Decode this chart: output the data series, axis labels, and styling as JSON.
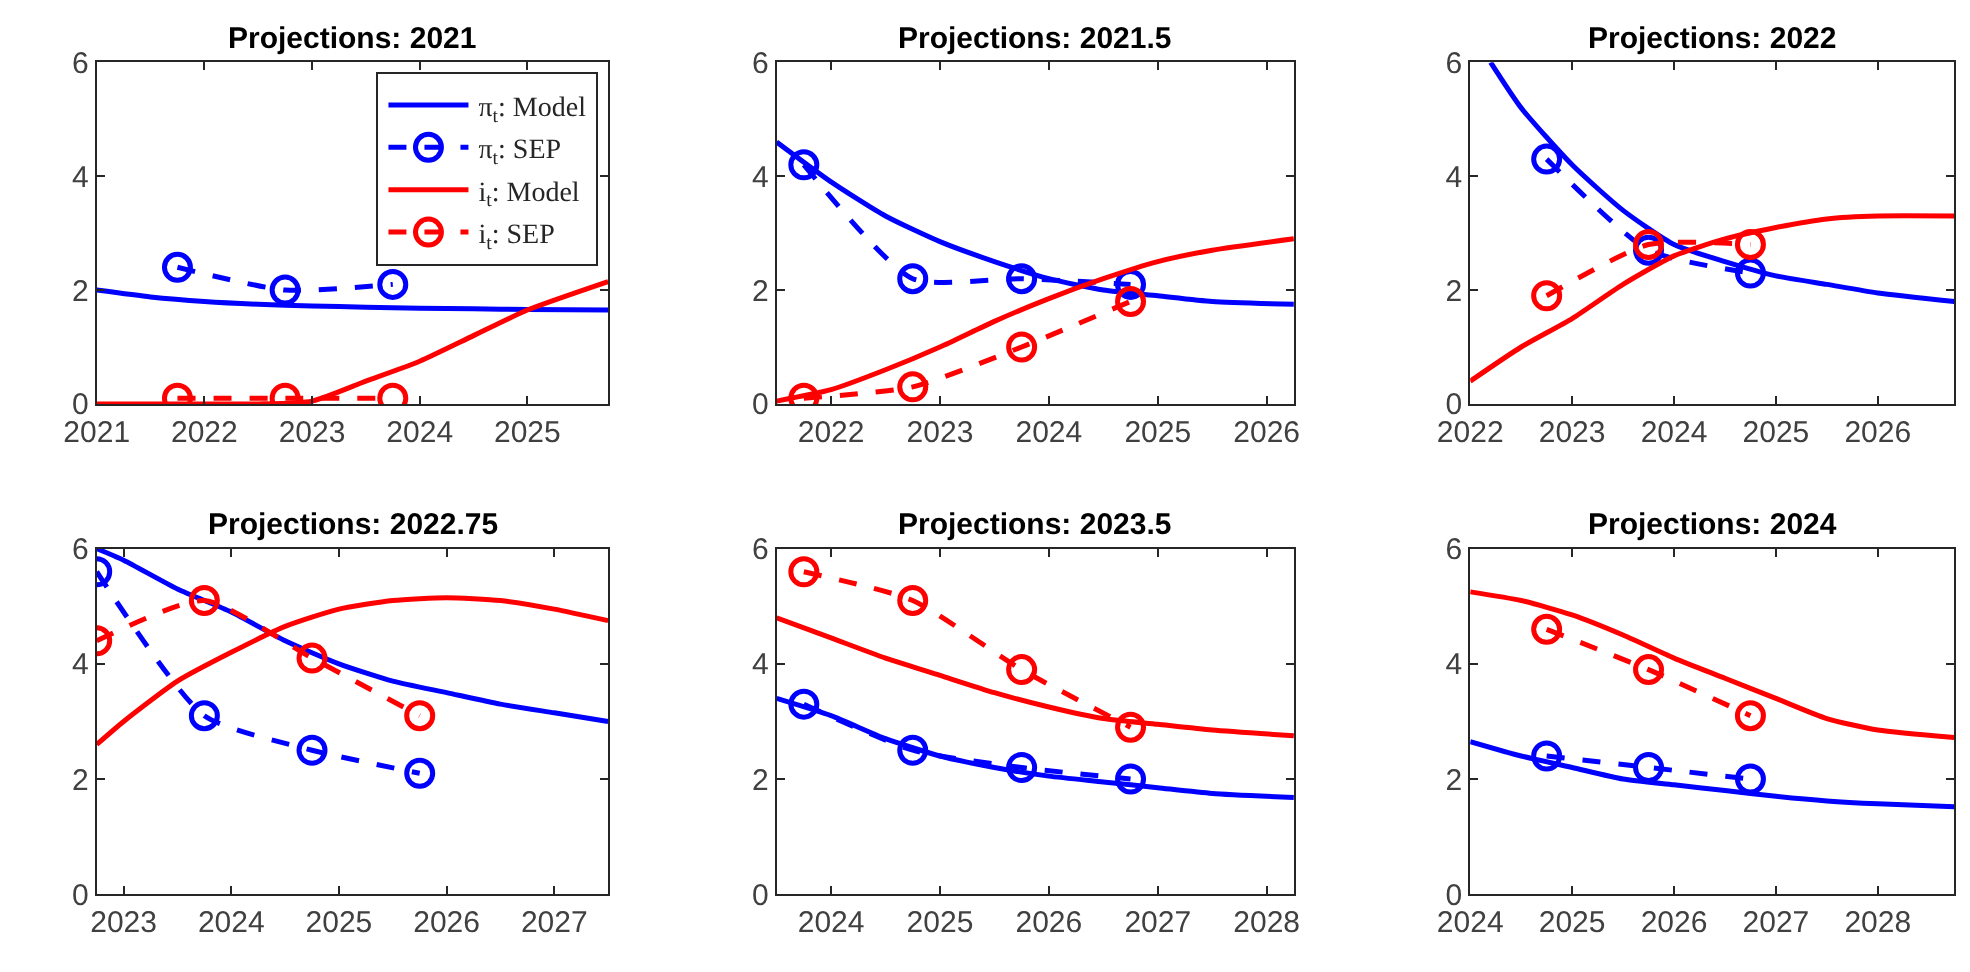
{
  "chart_data": [
    {
      "type": "line",
      "title": "Projections: 2021",
      "xlim": [
        2021,
        2025.75
      ],
      "xticks": [
        2021,
        2022,
        2023,
        2024,
        2025
      ],
      "ylim": [
        0,
        6
      ],
      "yticks": [
        0,
        2,
        4,
        6
      ],
      "legend": "top right",
      "series": [
        {
          "name": "π$_{t}$: Model",
          "color": "#0000ff",
          "line_style": "solid",
          "marker": "none",
          "x": [
            2021,
            2021.5,
            2022,
            2022.5,
            2023,
            2023.5,
            2024,
            2024.5,
            2025,
            2025.75
          ],
          "values": [
            2.0,
            1.88,
            1.8,
            1.75,
            1.72,
            1.7,
            1.68,
            1.67,
            1.66,
            1.65
          ]
        },
        {
          "name": "π$_{t}$: SEP",
          "color": "#0000ff",
          "line_style": "dashed",
          "marker": "circle",
          "x": [
            2021.75,
            2022.75,
            2023.75
          ],
          "values": [
            2.4,
            2.0,
            2.1
          ]
        },
        {
          "name": "i$_{t}$: Model",
          "color": "#ff0000",
          "line_style": "solid",
          "marker": "none",
          "x": [
            2021,
            2021.5,
            2022,
            2022.5,
            2023,
            2023.5,
            2024,
            2024.5,
            2025,
            2025.75
          ],
          "values": [
            0,
            0,
            0,
            0,
            0.05,
            0.4,
            0.75,
            1.2,
            1.65,
            2.15
          ]
        },
        {
          "name": "i$_{t}$: SEP",
          "color": "#ff0000",
          "line_style": "dashed",
          "marker": "circle",
          "x": [
            2021.75,
            2022.75,
            2023.75
          ],
          "values": [
            0.1,
            0.1,
            0.1
          ]
        }
      ]
    },
    {
      "type": "line",
      "title": "Projections: 2021.5",
      "xlim": [
        2021.5,
        2026.25
      ],
      "xticks": [
        2022,
        2023,
        2024,
        2025,
        2026
      ],
      "ylim": [
        0,
        6
      ],
      "yticks": [
        0,
        2,
        4,
        6
      ],
      "legend": false,
      "series": [
        {
          "color": "#0000ff",
          "line_style": "solid",
          "marker": "none",
          "x": [
            2021.5,
            2022,
            2022.5,
            2023,
            2023.5,
            2024,
            2024.5,
            2025,
            2025.5,
            2026.25
          ],
          "values": [
            4.6,
            3.9,
            3.3,
            2.85,
            2.5,
            2.2,
            2.0,
            1.9,
            1.8,
            1.75
          ]
        },
        {
          "color": "#0000ff",
          "line_style": "dashed",
          "marker": "circle",
          "x": [
            2021.75,
            2022.75,
            2023.75,
            2024.75
          ],
          "values": [
            4.2,
            2.2,
            2.2,
            2.1
          ]
        },
        {
          "color": "#ff0000",
          "line_style": "solid",
          "marker": "none",
          "x": [
            2021.5,
            2022,
            2022.5,
            2023,
            2023.5,
            2024,
            2024.5,
            2025,
            2025.5,
            2026.25
          ],
          "values": [
            0.05,
            0.25,
            0.6,
            1.0,
            1.45,
            1.85,
            2.2,
            2.5,
            2.7,
            2.9
          ]
        },
        {
          "color": "#ff0000",
          "line_style": "dashed",
          "marker": "circle",
          "x": [
            2021.75,
            2022.75,
            2023.75,
            2024.75
          ],
          "values": [
            0.1,
            0.3,
            1.0,
            1.8
          ]
        }
      ]
    },
    {
      "type": "line",
      "title": "Projections: 2022",
      "xlim": [
        2022,
        2026.75
      ],
      "xticks": [
        2022,
        2023,
        2024,
        2025,
        2026
      ],
      "ylim": [
        0,
        6
      ],
      "yticks": [
        0,
        2,
        4,
        6
      ],
      "legend": false,
      "series": [
        {
          "color": "#0000ff",
          "line_style": "solid",
          "marker": "none",
          "x": [
            2022.2,
            2022.5,
            2023,
            2023.5,
            2024,
            2024.5,
            2025,
            2025.5,
            2026,
            2026.75
          ],
          "values": [
            6.0,
            5.2,
            4.2,
            3.4,
            2.8,
            2.5,
            2.25,
            2.1,
            1.95,
            1.8
          ]
        },
        {
          "color": "#0000ff",
          "line_style": "dashed",
          "marker": "circle",
          "x": [
            2022.75,
            2023.75,
            2024.75
          ],
          "values": [
            4.3,
            2.7,
            2.3
          ]
        },
        {
          "color": "#ff0000",
          "line_style": "solid",
          "marker": "none",
          "x": [
            2022,
            2022.5,
            2023,
            2023.5,
            2024,
            2024.5,
            2025,
            2025.5,
            2026,
            2026.75
          ],
          "values": [
            0.4,
            1.0,
            1.5,
            2.1,
            2.6,
            2.9,
            3.1,
            3.25,
            3.3,
            3.3
          ]
        },
        {
          "color": "#ff0000",
          "line_style": "dashed",
          "marker": "circle",
          "x": [
            2022.75,
            2023.75,
            2024.75
          ],
          "values": [
            1.9,
            2.8,
            2.8
          ]
        }
      ]
    },
    {
      "type": "line",
      "title": "Projections: 2022.75",
      "xlim": [
        2022.75,
        2027.5
      ],
      "xticks": [
        2023,
        2024,
        2025,
        2026,
        2027
      ],
      "ylim": [
        0,
        6
      ],
      "yticks": [
        0,
        2,
        4,
        6
      ],
      "legend": false,
      "series": [
        {
          "color": "#0000ff",
          "line_style": "solid",
          "marker": "none",
          "x": [
            2022.75,
            2023,
            2023.5,
            2024,
            2024.5,
            2025,
            2025.5,
            2026,
            2026.5,
            2027,
            2027.5
          ],
          "values": [
            6.0,
            5.8,
            5.3,
            4.9,
            4.4,
            4.0,
            3.7,
            3.5,
            3.3,
            3.15,
            3.0
          ]
        },
        {
          "color": "#0000ff",
          "line_style": "dashed",
          "marker": "circle",
          "x": [
            2022.75,
            2023.75,
            2024.75,
            2025.75
          ],
          "values": [
            5.6,
            3.1,
            2.5,
            2.1
          ]
        },
        {
          "color": "#ff0000",
          "line_style": "solid",
          "marker": "none",
          "x": [
            2022.75,
            2023,
            2023.5,
            2024,
            2024.5,
            2025,
            2025.5,
            2026,
            2026.5,
            2027,
            2027.5
          ],
          "values": [
            2.6,
            3.0,
            3.7,
            4.2,
            4.65,
            4.95,
            5.1,
            5.15,
            5.1,
            4.95,
            4.75
          ]
        },
        {
          "color": "#ff0000",
          "line_style": "dashed",
          "marker": "circle",
          "x": [
            2022.75,
            2023.75,
            2024.75,
            2025.75
          ],
          "values": [
            4.4,
            5.1,
            4.1,
            3.1
          ]
        }
      ]
    },
    {
      "type": "line",
      "title": "Projections: 2023.5",
      "xlim": [
        2023.5,
        2028.25
      ],
      "xticks": [
        2024,
        2025,
        2026,
        2027,
        2028
      ],
      "ylim": [
        0,
        6
      ],
      "yticks": [
        0,
        2,
        4,
        6
      ],
      "legend": false,
      "series": [
        {
          "color": "#0000ff",
          "line_style": "solid",
          "marker": "none",
          "x": [
            2023.5,
            2024,
            2024.5,
            2025,
            2025.5,
            2026,
            2026.5,
            2027,
            2027.5,
            2028.25
          ],
          "values": [
            3.4,
            3.1,
            2.7,
            2.4,
            2.2,
            2.05,
            1.95,
            1.85,
            1.75,
            1.68
          ]
        },
        {
          "color": "#0000ff",
          "line_style": "dashed",
          "marker": "circle",
          "x": [
            2023.75,
            2024.75,
            2025.75,
            2026.75
          ],
          "values": [
            3.3,
            2.5,
            2.2,
            2.0
          ]
        },
        {
          "color": "#ff0000",
          "line_style": "solid",
          "marker": "none",
          "x": [
            2023.5,
            2024,
            2024.5,
            2025,
            2025.5,
            2026,
            2026.5,
            2027,
            2027.5,
            2028.25
          ],
          "values": [
            4.8,
            4.45,
            4.1,
            3.8,
            3.5,
            3.25,
            3.05,
            2.95,
            2.85,
            2.75
          ]
        },
        {
          "color": "#ff0000",
          "line_style": "dashed",
          "marker": "circle",
          "x": [
            2023.75,
            2024.75,
            2025.75,
            2026.75
          ],
          "values": [
            5.6,
            5.1,
            3.9,
            2.9
          ]
        }
      ]
    },
    {
      "type": "line",
      "title": "Projections: 2024",
      "xlim": [
        2024,
        2028.75
      ],
      "xticks": [
        2024,
        2025,
        2026,
        2027,
        2028
      ],
      "ylim": [
        0,
        6
      ],
      "yticks": [
        0,
        2,
        4,
        6
      ],
      "legend": false,
      "series": [
        {
          "color": "#0000ff",
          "line_style": "solid",
          "marker": "none",
          "x": [
            2024,
            2024.5,
            2025,
            2025.5,
            2026,
            2026.5,
            2027,
            2027.5,
            2028,
            2028.75
          ],
          "values": [
            2.65,
            2.4,
            2.2,
            2.0,
            1.9,
            1.8,
            1.7,
            1.62,
            1.57,
            1.52
          ]
        },
        {
          "color": "#0000ff",
          "line_style": "dashed",
          "marker": "circle",
          "x": [
            2024.75,
            2025.75,
            2026.75
          ],
          "values": [
            2.4,
            2.2,
            2.0
          ]
        },
        {
          "color": "#ff0000",
          "line_style": "solid",
          "marker": "none",
          "x": [
            2024,
            2024.5,
            2025,
            2025.5,
            2026,
            2026.5,
            2027,
            2027.5,
            2028,
            2028.75
          ],
          "values": [
            5.25,
            5.1,
            4.85,
            4.5,
            4.1,
            3.75,
            3.4,
            3.05,
            2.85,
            2.72
          ]
        },
        {
          "color": "#ff0000",
          "line_style": "dashed",
          "marker": "circle",
          "x": [
            2024.75,
            2025.75,
            2026.75
          ],
          "values": [
            4.6,
            3.9,
            3.1
          ]
        }
      ]
    }
  ]
}
